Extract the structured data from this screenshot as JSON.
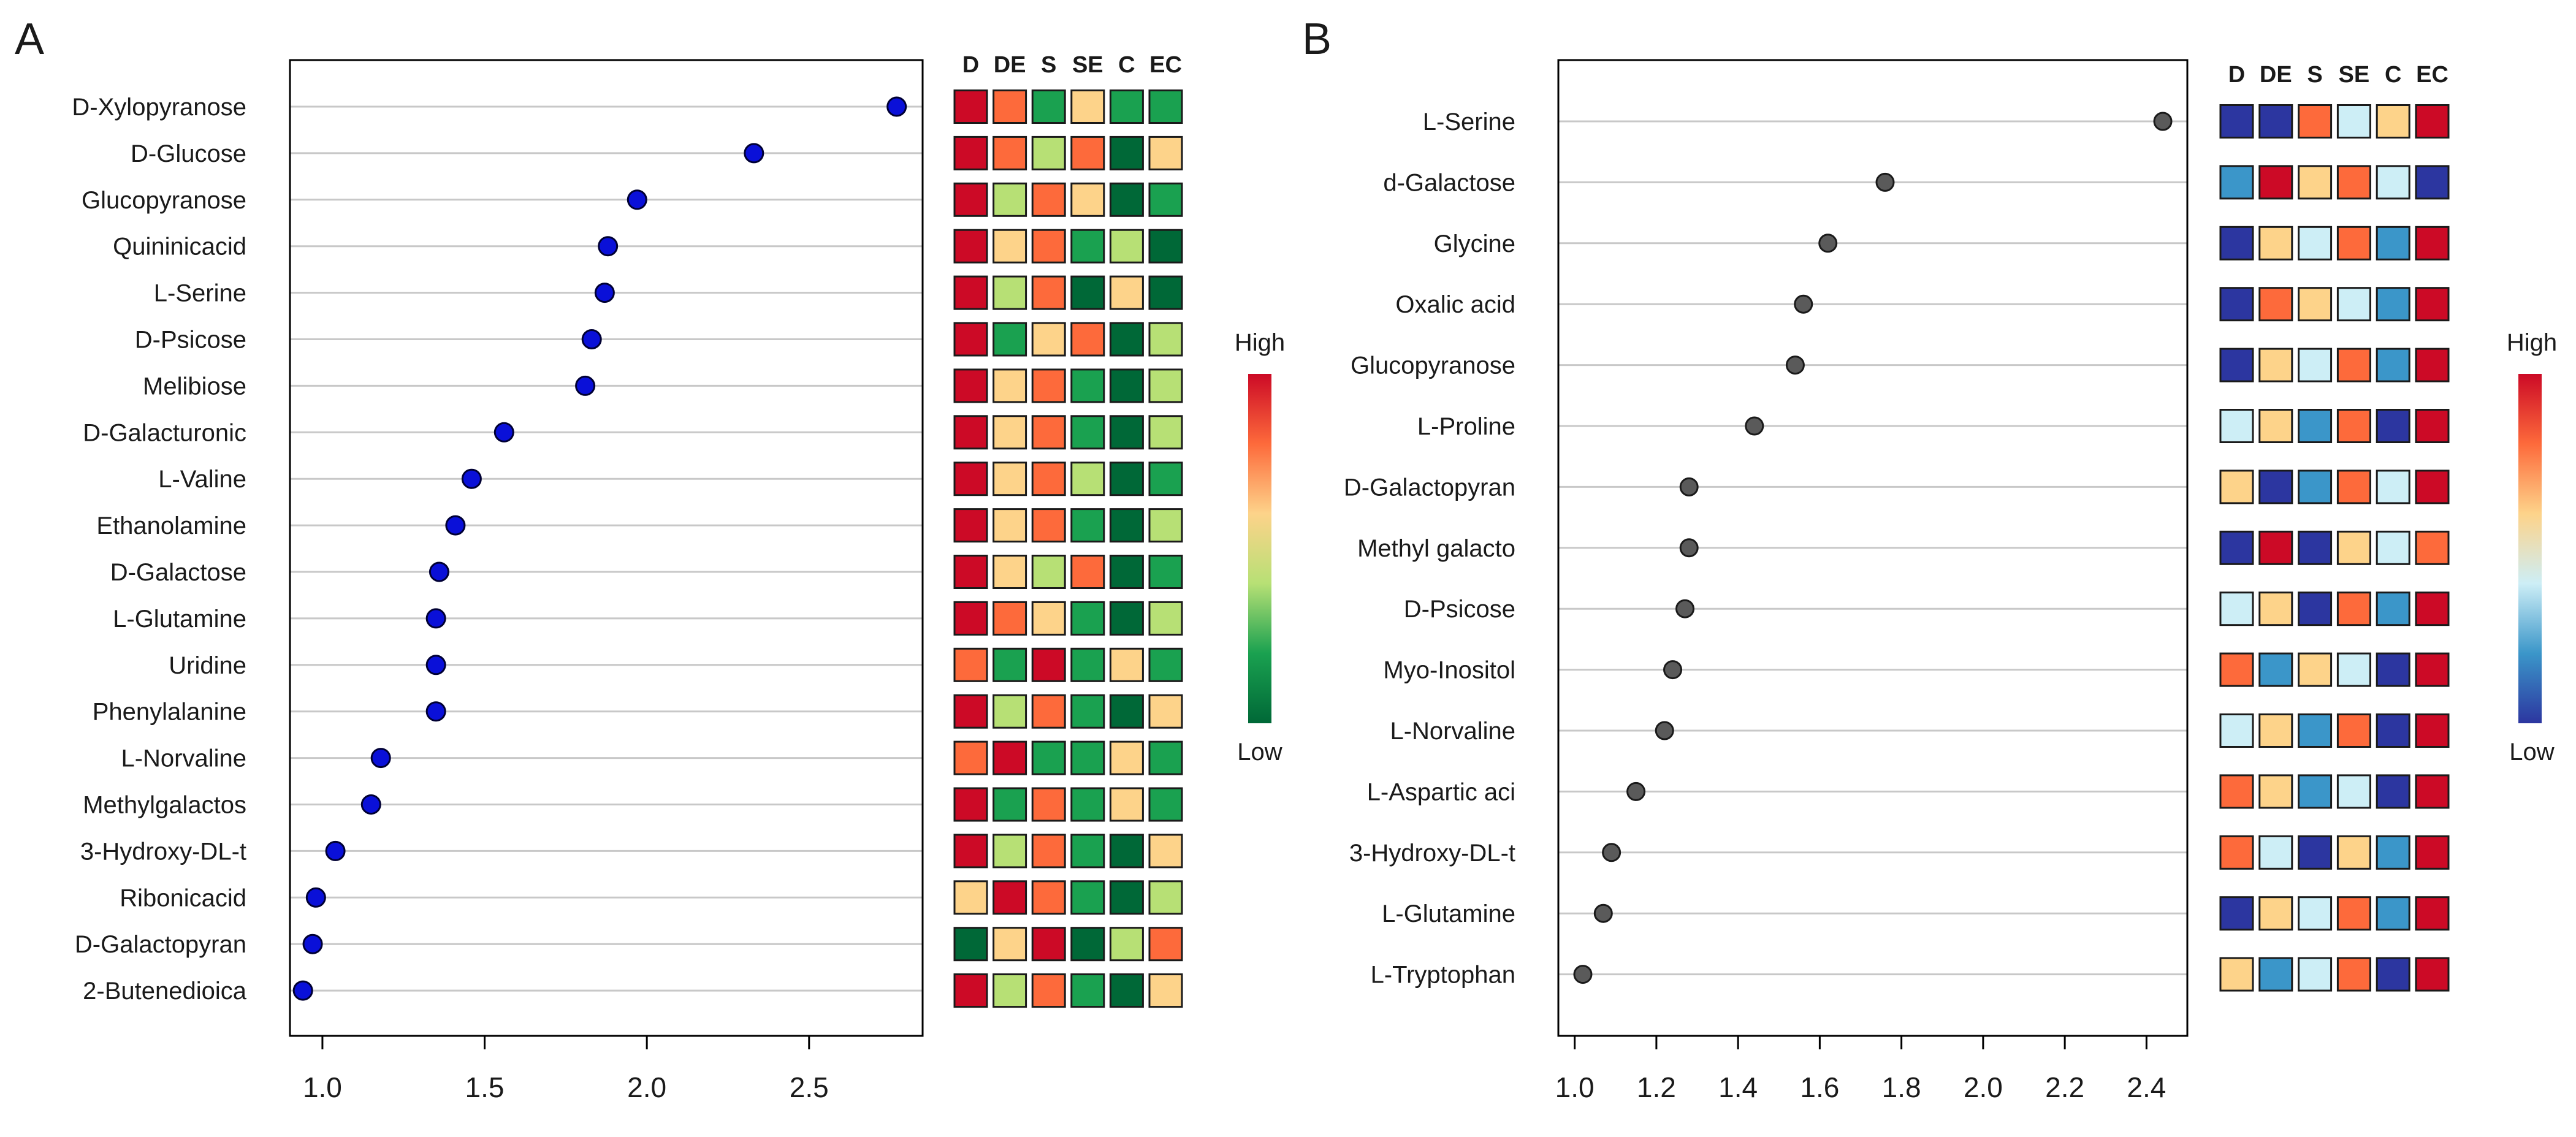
{
  "figure": {
    "panels": [
      "A",
      "B"
    ]
  },
  "colors": {
    "heatmap_A_scale": [
      "#006837",
      "#1aa150",
      "#b7e075",
      "#fdd38a",
      "#fd6a3b",
      "#cc0a26"
    ],
    "heatmap_B_scale": [
      "#2c36a0",
      "#3b96c9",
      "#cdeef6",
      "#fdd38a",
      "#fd6a3b",
      "#cc0a26"
    ],
    "dots_A": "#0a10d8",
    "dots_B": "#5a5a5a",
    "gridline": "#c8c8c8"
  },
  "chart_data": [
    {
      "panel": "A",
      "type": "scatter",
      "subtype": "dot-plot",
      "labels": [
        "D-Xylopyranose",
        "D-Glucose",
        "Glucopyranose",
        "Quininicacid",
        "L-Serine",
        "D-Psicose",
        "Melibiose",
        "D-Galacturonic",
        "L-Valine",
        "Ethanolamine",
        "D-Galactose",
        "L-Glutamine",
        "Uridine",
        "Phenylalanine",
        "L-Norvaline",
        "Methylgalactos",
        "3-Hydroxy-DL-t",
        "Ribonicacid",
        "D-Galactopyran",
        "2-Butenedioica"
      ],
      "values": [
        2.77,
        2.33,
        1.97,
        1.88,
        1.87,
        1.83,
        1.81,
        1.56,
        1.46,
        1.41,
        1.36,
        1.35,
        1.35,
        1.35,
        1.18,
        1.15,
        1.04,
        0.98,
        0.97,
        0.94
      ],
      "xlim": [
        0.9,
        2.85
      ],
      "xticks": [
        1.0,
        1.5,
        2.0,
        2.5
      ],
      "xtick_labels": [
        "1.0",
        "1.5",
        "2.0",
        "2.5"
      ],
      "title": "",
      "xlabel": "",
      "ylabel": "",
      "grid": "horizontal",
      "heatmap": {
        "columns": [
          "D",
          "DE",
          "S",
          "SE",
          "C",
          "EC"
        ],
        "levels": [
          [
            5,
            4,
            1,
            3,
            1,
            1
          ],
          [
            5,
            4,
            2,
            4,
            0,
            3
          ],
          [
            5,
            2,
            4,
            3,
            0,
            1
          ],
          [
            5,
            3,
            4,
            1,
            2,
            0
          ],
          [
            5,
            2,
            4,
            0,
            3,
            0
          ],
          [
            5,
            1,
            3,
            4,
            0,
            2
          ],
          [
            5,
            3,
            4,
            1,
            0,
            2
          ],
          [
            5,
            3,
            4,
            1,
            0,
            2
          ],
          [
            5,
            3,
            4,
            2,
            0,
            1
          ],
          [
            5,
            3,
            4,
            1,
            0,
            2
          ],
          [
            5,
            3,
            2,
            4,
            0,
            1
          ],
          [
            5,
            4,
            3,
            1,
            0,
            2
          ],
          [
            4,
            1,
            5,
            1,
            3,
            1
          ],
          [
            5,
            2,
            4,
            1,
            0,
            3
          ],
          [
            4,
            5,
            1,
            1,
            3,
            1
          ],
          [
            5,
            1,
            4,
            1,
            3,
            1
          ],
          [
            5,
            2,
            4,
            1,
            0,
            3
          ],
          [
            3,
            5,
            4,
            1,
            0,
            2
          ],
          [
            0,
            3,
            5,
            0,
            2,
            4
          ],
          [
            5,
            2,
            4,
            1,
            0,
            3
          ]
        ],
        "legend_high": "High",
        "legend_low": "Low"
      }
    },
    {
      "panel": "B",
      "type": "scatter",
      "subtype": "dot-plot",
      "labels": [
        "L-Serine",
        "d-Galactose",
        "Glycine",
        "Oxalic acid",
        "Glucopyranose",
        "L-Proline",
        "D-Galactopyran",
        "Methyl galacto",
        "D-Psicose",
        "Myo-Inositol",
        "L-Norvaline",
        "L-Aspartic aci",
        "3-Hydroxy-DL-t",
        "L-Glutamine",
        "L-Tryptophan"
      ],
      "values": [
        2.44,
        1.76,
        1.62,
        1.56,
        1.54,
        1.44,
        1.28,
        1.28,
        1.27,
        1.24,
        1.22,
        1.15,
        1.09,
        1.07,
        1.02
      ],
      "xlim": [
        0.96,
        2.5
      ],
      "xticks": [
        1.0,
        1.2,
        1.4,
        1.6,
        1.8,
        2.0,
        2.2,
        2.4
      ],
      "xtick_labels": [
        "1.0",
        "1.2",
        "1.4",
        "1.6",
        "1.8",
        "2.0",
        "2.2",
        "2.4"
      ],
      "title": "",
      "xlabel": "",
      "ylabel": "",
      "grid": "horizontal",
      "heatmap": {
        "columns": [
          "D",
          "DE",
          "S",
          "SE",
          "C",
          "EC"
        ],
        "levels": [
          [
            0,
            0,
            4,
            2,
            3,
            5
          ],
          [
            1,
            5,
            3,
            4,
            2,
            0
          ],
          [
            0,
            3,
            2,
            4,
            1,
            5
          ],
          [
            0,
            4,
            3,
            2,
            1,
            5
          ],
          [
            0,
            3,
            2,
            4,
            1,
            5
          ],
          [
            2,
            3,
            1,
            4,
            0,
            5
          ],
          [
            3,
            0,
            1,
            4,
            2,
            5
          ],
          [
            0,
            5,
            0,
            3,
            2,
            4
          ],
          [
            2,
            3,
            0,
            4,
            1,
            5
          ],
          [
            4,
            1,
            3,
            2,
            0,
            5
          ],
          [
            2,
            3,
            1,
            4,
            0,
            5
          ],
          [
            4,
            3,
            1,
            2,
            0,
            5
          ],
          [
            4,
            2,
            0,
            3,
            1,
            5
          ],
          [
            0,
            3,
            2,
            4,
            1,
            5
          ],
          [
            3,
            1,
            2,
            4,
            0,
            5
          ]
        ],
        "legend_high": "High",
        "legend_low": "Low"
      }
    }
  ]
}
